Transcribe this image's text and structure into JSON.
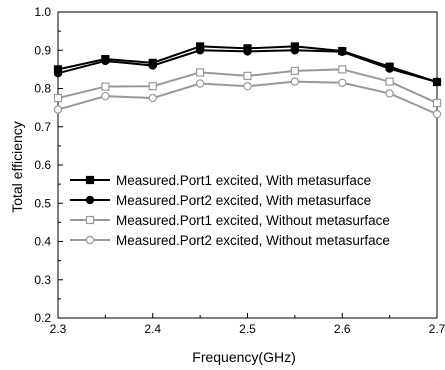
{
  "chart_data": {
    "type": "line",
    "xlabel": "Frequency(GHz)",
    "ylabel": "Total efficiency",
    "xlim": [
      2.3,
      2.7
    ],
    "ylim": [
      0.2,
      1.0
    ],
    "x_ticks": [
      "2.3",
      "2.4",
      "2.5",
      "2.6",
      "2.7"
    ],
    "y_ticks": [
      "0.2",
      "0.3",
      "0.4",
      "0.5",
      "0.6",
      "0.7",
      "0.8",
      "0.9",
      "1.0"
    ],
    "grid": false,
    "legend_position": "center-right",
    "x": [
      2.3,
      2.35,
      2.4,
      2.45,
      2.5,
      2.55,
      2.6,
      2.65,
      2.7
    ],
    "series": [
      {
        "name": "Measured.Port1 excited, With metasurface",
        "color": "#000000",
        "marker": "square-filled",
        "values": [
          0.85,
          0.877,
          0.867,
          0.91,
          0.905,
          0.91,
          0.898,
          0.857,
          0.817
        ]
      },
      {
        "name": "Measured.Port2 excited, With metasurface",
        "color": "#000000",
        "marker": "circle-filled",
        "values": [
          0.84,
          0.872,
          0.86,
          0.9,
          0.897,
          0.9,
          0.896,
          0.852,
          0.817
        ]
      },
      {
        "name": "Measured.Port1 excited, Without metasurface",
        "color": "#999999",
        "marker": "square-open",
        "values": [
          0.775,
          0.805,
          0.806,
          0.842,
          0.833,
          0.846,
          0.85,
          0.818,
          0.762
        ]
      },
      {
        "name": "Measured.Port2 excited, Without metasurface",
        "color": "#999999",
        "marker": "circle-open",
        "values": [
          0.745,
          0.78,
          0.775,
          0.813,
          0.806,
          0.818,
          0.815,
          0.787,
          0.733
        ]
      }
    ]
  }
}
